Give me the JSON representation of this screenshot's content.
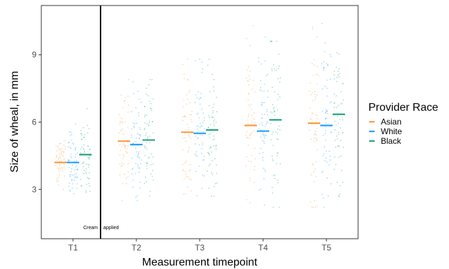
{
  "chart_data": {
    "type": "scatter",
    "xlabel": "Measurement timepoint",
    "ylabel": "Size of wheal, in mm",
    "categories": [
      "T1",
      "T2",
      "T3",
      "T4",
      "T5"
    ],
    "yticks": [
      "3",
      "6",
      "9"
    ],
    "ylim": [
      0.8,
      11.2
    ],
    "grid": false,
    "legend": {
      "title": "Provider Race",
      "placement": "right"
    },
    "series": [
      {
        "name": "Asian",
        "color": "#ff9a3d",
        "means": [
          4.2,
          5.15,
          5.55,
          5.85,
          5.95
        ],
        "spread": [
          [
            3.0,
            5.6
          ],
          [
            2.5,
            7.9
          ],
          [
            2.8,
            8.8
          ],
          [
            2.4,
            10.3
          ],
          [
            2.2,
            10.9
          ]
        ]
      },
      {
        "name": "White",
        "color": "#1fa2ff",
        "means": [
          4.2,
          5.0,
          5.5,
          5.6,
          5.85
        ],
        "spread": [
          [
            2.8,
            6.2
          ],
          [
            2.5,
            7.8
          ],
          [
            2.6,
            9.0
          ],
          [
            2.3,
            9.8
          ],
          [
            2.2,
            10.4
          ]
        ]
      },
      {
        "name": "Black",
        "color": "#1fa87a",
        "means": [
          4.55,
          5.2,
          5.65,
          6.1,
          6.35
        ],
        "spread": [
          [
            2.7,
            6.6
          ],
          [
            2.6,
            7.9
          ],
          [
            2.7,
            8.8
          ],
          [
            2.2,
            9.6
          ],
          [
            2.7,
            10.2
          ]
        ]
      }
    ],
    "annotation": {
      "text_left": "Cream",
      "text_right": "applied"
    }
  }
}
